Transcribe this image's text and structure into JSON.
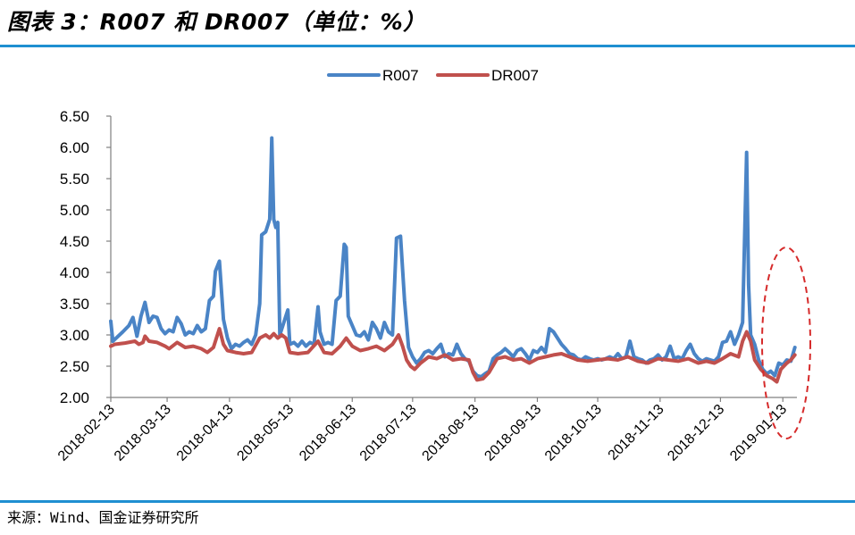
{
  "title": "图表 3：R007 和 DR007（单位：%）",
  "source": "来源：Wind、国金证券研究所",
  "colors": {
    "rule": "#1f8fd1",
    "r007": "#4a84c6",
    "dr007": "#c0504d",
    "annotation": "#d62b2b"
  },
  "chart_data": {
    "type": "line",
    "title": "R007 和 DR007（单位：%）",
    "xlabel": "",
    "ylabel": "",
    "ylim": [
      2.0,
      6.5
    ],
    "yticks": [
      "2.00",
      "2.50",
      "3.00",
      "3.50",
      "4.00",
      "4.50",
      "5.00",
      "5.50",
      "6.00",
      "6.50"
    ],
    "x_range": [
      "2018-02-13",
      "2019-01-20"
    ],
    "x_tick_labels": [
      "2018-02-13",
      "2018-03-13",
      "2018-04-13",
      "2018-05-13",
      "2018-06-13",
      "2018-07-13",
      "2018-08-13",
      "2018-09-13",
      "2018-10-13",
      "2018-11-13",
      "2018-12-13",
      "2019-01-13"
    ],
    "legend": [
      "R007",
      "DR007"
    ],
    "legend_position": "top-center",
    "annotation": "dashed red ellipse highlighting January 2019",
    "series": [
      {
        "name": "R007",
        "points": [
          [
            "2018-02-13",
            3.22
          ],
          [
            "2018-02-14",
            2.9
          ],
          [
            "2018-02-19",
            3.05
          ],
          [
            "2018-02-22",
            3.15
          ],
          [
            "2018-02-24",
            3.28
          ],
          [
            "2018-02-26",
            2.98
          ],
          [
            "2018-02-28",
            3.3
          ],
          [
            "2018-03-02",
            3.52
          ],
          [
            "2018-03-04",
            3.2
          ],
          [
            "2018-03-06",
            3.3
          ],
          [
            "2018-03-08",
            3.28
          ],
          [
            "2018-03-10",
            3.1
          ],
          [
            "2018-03-12",
            3.02
          ],
          [
            "2018-03-14",
            3.08
          ],
          [
            "2018-03-16",
            3.05
          ],
          [
            "2018-03-18",
            3.28
          ],
          [
            "2018-03-20",
            3.18
          ],
          [
            "2018-03-22",
            3.0
          ],
          [
            "2018-03-24",
            3.05
          ],
          [
            "2018-03-26",
            3.02
          ],
          [
            "2018-03-28",
            3.15
          ],
          [
            "2018-03-30",
            3.05
          ],
          [
            "2018-04-01",
            3.1
          ],
          [
            "2018-04-03",
            3.55
          ],
          [
            "2018-04-05",
            3.62
          ],
          [
            "2018-04-06",
            4.02
          ],
          [
            "2018-04-08",
            4.18
          ],
          [
            "2018-04-10",
            3.25
          ],
          [
            "2018-04-12",
            2.95
          ],
          [
            "2018-04-14",
            2.78
          ],
          [
            "2018-04-16",
            2.85
          ],
          [
            "2018-04-18",
            2.82
          ],
          [
            "2018-04-20",
            2.88
          ],
          [
            "2018-04-22",
            2.92
          ],
          [
            "2018-04-24",
            2.85
          ],
          [
            "2018-04-26",
            3.0
          ],
          [
            "2018-04-28",
            3.5
          ],
          [
            "2018-04-29",
            4.6
          ],
          [
            "2018-05-01",
            4.65
          ],
          [
            "2018-05-03",
            4.85
          ],
          [
            "2018-05-04",
            6.15
          ],
          [
            "2018-05-05",
            4.85
          ],
          [
            "2018-05-06",
            4.72
          ],
          [
            "2018-05-07",
            4.8
          ],
          [
            "2018-05-08",
            3.0
          ],
          [
            "2018-05-10",
            3.2
          ],
          [
            "2018-05-12",
            3.4
          ],
          [
            "2018-05-13",
            2.85
          ],
          [
            "2018-05-15",
            2.88
          ],
          [
            "2018-05-17",
            2.82
          ],
          [
            "2018-05-19",
            2.9
          ],
          [
            "2018-05-21",
            2.82
          ],
          [
            "2018-05-23",
            2.88
          ],
          [
            "2018-05-25",
            2.85
          ],
          [
            "2018-05-27",
            3.45
          ],
          [
            "2018-05-28",
            3.05
          ],
          [
            "2018-05-30",
            2.85
          ],
          [
            "2018-06-01",
            2.88
          ],
          [
            "2018-06-03",
            2.85
          ],
          [
            "2018-06-05",
            3.55
          ],
          [
            "2018-06-07",
            3.62
          ],
          [
            "2018-06-09",
            4.45
          ],
          [
            "2018-06-10",
            4.4
          ],
          [
            "2018-06-11",
            3.3
          ],
          [
            "2018-06-13",
            3.15
          ],
          [
            "2018-06-15",
            3.0
          ],
          [
            "2018-06-17",
            2.98
          ],
          [
            "2018-06-19",
            3.05
          ],
          [
            "2018-06-21",
            2.92
          ],
          [
            "2018-06-23",
            3.2
          ],
          [
            "2018-06-25",
            3.1
          ],
          [
            "2018-06-27",
            2.95
          ],
          [
            "2018-06-29",
            3.2
          ],
          [
            "2018-07-01",
            3.05
          ],
          [
            "2018-07-03",
            3.0
          ],
          [
            "2018-07-05",
            4.55
          ],
          [
            "2018-07-07",
            4.58
          ],
          [
            "2018-07-09",
            3.55
          ],
          [
            "2018-07-11",
            2.8
          ],
          [
            "2018-07-13",
            2.65
          ],
          [
            "2018-07-15",
            2.55
          ],
          [
            "2018-07-17",
            2.62
          ],
          [
            "2018-07-19",
            2.72
          ],
          [
            "2018-07-21",
            2.75
          ],
          [
            "2018-07-23",
            2.7
          ],
          [
            "2018-07-25",
            2.78
          ],
          [
            "2018-07-27",
            2.85
          ],
          [
            "2018-07-29",
            2.65
          ],
          [
            "2018-07-31",
            2.7
          ],
          [
            "2018-08-02",
            2.68
          ],
          [
            "2018-08-04",
            2.85
          ],
          [
            "2018-08-06",
            2.7
          ],
          [
            "2018-08-08",
            2.62
          ],
          [
            "2018-08-10",
            2.58
          ],
          [
            "2018-08-12",
            2.42
          ],
          [
            "2018-08-14",
            2.35
          ],
          [
            "2018-08-16",
            2.33
          ],
          [
            "2018-08-18",
            2.38
          ],
          [
            "2018-08-20",
            2.42
          ],
          [
            "2018-08-22",
            2.62
          ],
          [
            "2018-08-24",
            2.68
          ],
          [
            "2018-08-26",
            2.72
          ],
          [
            "2018-08-28",
            2.78
          ],
          [
            "2018-08-30",
            2.72
          ],
          [
            "2018-09-01",
            2.65
          ],
          [
            "2018-09-03",
            2.75
          ],
          [
            "2018-09-05",
            2.78
          ],
          [
            "2018-09-07",
            2.7
          ],
          [
            "2018-09-09",
            2.6
          ],
          [
            "2018-09-11",
            2.75
          ],
          [
            "2018-09-13",
            2.72
          ],
          [
            "2018-09-15",
            2.8
          ],
          [
            "2018-09-17",
            2.72
          ],
          [
            "2018-09-19",
            3.1
          ],
          [
            "2018-09-21",
            3.05
          ],
          [
            "2018-09-23",
            2.95
          ],
          [
            "2018-09-25",
            2.85
          ],
          [
            "2018-09-27",
            2.78
          ],
          [
            "2018-09-29",
            2.7
          ],
          [
            "2018-10-01",
            2.68
          ],
          [
            "2018-10-03",
            2.62
          ],
          [
            "2018-10-05",
            2.6
          ],
          [
            "2018-10-07",
            2.65
          ],
          [
            "2018-10-09",
            2.62
          ],
          [
            "2018-10-11",
            2.6
          ],
          [
            "2018-10-13",
            2.62
          ],
          [
            "2018-10-15",
            2.6
          ],
          [
            "2018-10-17",
            2.62
          ],
          [
            "2018-10-19",
            2.65
          ],
          [
            "2018-10-21",
            2.62
          ],
          [
            "2018-10-23",
            2.7
          ],
          [
            "2018-10-25",
            2.62
          ],
          [
            "2018-10-27",
            2.65
          ],
          [
            "2018-10-29",
            2.9
          ],
          [
            "2018-10-31",
            2.65
          ],
          [
            "2018-11-02",
            2.62
          ],
          [
            "2018-11-04",
            2.6
          ],
          [
            "2018-11-06",
            2.55
          ],
          [
            "2018-11-08",
            2.6
          ],
          [
            "2018-11-10",
            2.62
          ],
          [
            "2018-11-12",
            2.68
          ],
          [
            "2018-11-14",
            2.6
          ],
          [
            "2018-11-16",
            2.65
          ],
          [
            "2018-11-18",
            2.82
          ],
          [
            "2018-11-20",
            2.62
          ],
          [
            "2018-11-22",
            2.65
          ],
          [
            "2018-11-24",
            2.62
          ],
          [
            "2018-11-26",
            2.75
          ],
          [
            "2018-11-28",
            2.85
          ],
          [
            "2018-11-30",
            2.7
          ],
          [
            "2018-12-02",
            2.62
          ],
          [
            "2018-12-04",
            2.58
          ],
          [
            "2018-12-06",
            2.62
          ],
          [
            "2018-12-08",
            2.6
          ],
          [
            "2018-12-10",
            2.58
          ],
          [
            "2018-12-12",
            2.65
          ],
          [
            "2018-12-14",
            2.88
          ],
          [
            "2018-12-16",
            2.9
          ],
          [
            "2018-12-18",
            3.05
          ],
          [
            "2018-12-20",
            2.85
          ],
          [
            "2018-12-22",
            3.0
          ],
          [
            "2018-12-24",
            3.2
          ],
          [
            "2018-12-26",
            5.92
          ],
          [
            "2018-12-27",
            3.8
          ],
          [
            "2018-12-28",
            3.0
          ],
          [
            "2018-12-30",
            2.85
          ],
          [
            "2019-01-01",
            2.6
          ],
          [
            "2019-01-03",
            2.45
          ],
          [
            "2019-01-05",
            2.38
          ],
          [
            "2019-01-07",
            2.42
          ],
          [
            "2019-01-09",
            2.35
          ],
          [
            "2019-01-11",
            2.55
          ],
          [
            "2019-01-13",
            2.52
          ],
          [
            "2019-01-15",
            2.6
          ],
          [
            "2019-01-17",
            2.58
          ],
          [
            "2019-01-19",
            2.8
          ]
        ]
      },
      {
        "name": "DR007",
        "points": [
          [
            "2018-02-13",
            2.82
          ],
          [
            "2018-02-15",
            2.85
          ],
          [
            "2018-02-20",
            2.87
          ],
          [
            "2018-02-25",
            2.9
          ],
          [
            "2018-02-27",
            2.85
          ],
          [
            "2018-03-01",
            2.88
          ],
          [
            "2018-03-02",
            2.98
          ],
          [
            "2018-03-04",
            2.9
          ],
          [
            "2018-03-08",
            2.88
          ],
          [
            "2018-03-12",
            2.82
          ],
          [
            "2018-03-14",
            2.78
          ],
          [
            "2018-03-18",
            2.88
          ],
          [
            "2018-03-22",
            2.8
          ],
          [
            "2018-03-26",
            2.82
          ],
          [
            "2018-03-30",
            2.78
          ],
          [
            "2018-04-02",
            2.72
          ],
          [
            "2018-04-05",
            2.8
          ],
          [
            "2018-04-08",
            3.1
          ],
          [
            "2018-04-10",
            2.85
          ],
          [
            "2018-04-12",
            2.75
          ],
          [
            "2018-04-16",
            2.72
          ],
          [
            "2018-04-20",
            2.7
          ],
          [
            "2018-04-24",
            2.72
          ],
          [
            "2018-04-28",
            2.95
          ],
          [
            "2018-05-01",
            3.0
          ],
          [
            "2018-05-03",
            2.95
          ],
          [
            "2018-05-05",
            3.02
          ],
          [
            "2018-05-07",
            2.95
          ],
          [
            "2018-05-09",
            3.0
          ],
          [
            "2018-05-11",
            2.95
          ],
          [
            "2018-05-13",
            2.72
          ],
          [
            "2018-05-17",
            2.7
          ],
          [
            "2018-05-22",
            2.72
          ],
          [
            "2018-05-27",
            2.9
          ],
          [
            "2018-05-30",
            2.72
          ],
          [
            "2018-06-03",
            2.7
          ],
          [
            "2018-06-07",
            2.82
          ],
          [
            "2018-06-10",
            2.95
          ],
          [
            "2018-06-13",
            2.82
          ],
          [
            "2018-06-17",
            2.75
          ],
          [
            "2018-06-21",
            2.78
          ],
          [
            "2018-06-25",
            2.82
          ],
          [
            "2018-06-29",
            2.75
          ],
          [
            "2018-07-03",
            2.85
          ],
          [
            "2018-07-06",
            3.0
          ],
          [
            "2018-07-08",
            2.82
          ],
          [
            "2018-07-10",
            2.6
          ],
          [
            "2018-07-12",
            2.5
          ],
          [
            "2018-07-14",
            2.45
          ],
          [
            "2018-07-17",
            2.55
          ],
          [
            "2018-07-21",
            2.65
          ],
          [
            "2018-07-25",
            2.62
          ],
          [
            "2018-07-29",
            2.68
          ],
          [
            "2018-08-02",
            2.6
          ],
          [
            "2018-08-06",
            2.62
          ],
          [
            "2018-08-10",
            2.6
          ],
          [
            "2018-08-12",
            2.4
          ],
          [
            "2018-08-14",
            2.28
          ],
          [
            "2018-08-17",
            2.3
          ],
          [
            "2018-08-20",
            2.4
          ],
          [
            "2018-08-24",
            2.62
          ],
          [
            "2018-08-28",
            2.65
          ],
          [
            "2018-09-01",
            2.6
          ],
          [
            "2018-09-05",
            2.62
          ],
          [
            "2018-09-09",
            2.55
          ],
          [
            "2018-09-13",
            2.62
          ],
          [
            "2018-09-17",
            2.65
          ],
          [
            "2018-09-21",
            2.68
          ],
          [
            "2018-09-25",
            2.7
          ],
          [
            "2018-09-29",
            2.65
          ],
          [
            "2018-10-03",
            2.6
          ],
          [
            "2018-10-08",
            2.58
          ],
          [
            "2018-10-13",
            2.6
          ],
          [
            "2018-10-18",
            2.62
          ],
          [
            "2018-10-23",
            2.6
          ],
          [
            "2018-10-28",
            2.65
          ],
          [
            "2018-11-02",
            2.58
          ],
          [
            "2018-11-07",
            2.55
          ],
          [
            "2018-11-12",
            2.62
          ],
          [
            "2018-11-17",
            2.6
          ],
          [
            "2018-11-22",
            2.58
          ],
          [
            "2018-11-27",
            2.62
          ],
          [
            "2018-12-02",
            2.55
          ],
          [
            "2018-12-06",
            2.58
          ],
          [
            "2018-12-10",
            2.55
          ],
          [
            "2018-12-14",
            2.62
          ],
          [
            "2018-12-18",
            2.7
          ],
          [
            "2018-12-22",
            2.65
          ],
          [
            "2018-12-24",
            2.9
          ],
          [
            "2018-12-26",
            3.05
          ],
          [
            "2018-12-28",
            2.9
          ],
          [
            "2018-12-30",
            2.6
          ],
          [
            "2019-01-02",
            2.45
          ],
          [
            "2019-01-05",
            2.35
          ],
          [
            "2019-01-08",
            2.3
          ],
          [
            "2019-01-10",
            2.25
          ],
          [
            "2019-01-12",
            2.45
          ],
          [
            "2019-01-15",
            2.55
          ],
          [
            "2019-01-17",
            2.6
          ],
          [
            "2019-01-19",
            2.68
          ]
        ]
      }
    ]
  }
}
